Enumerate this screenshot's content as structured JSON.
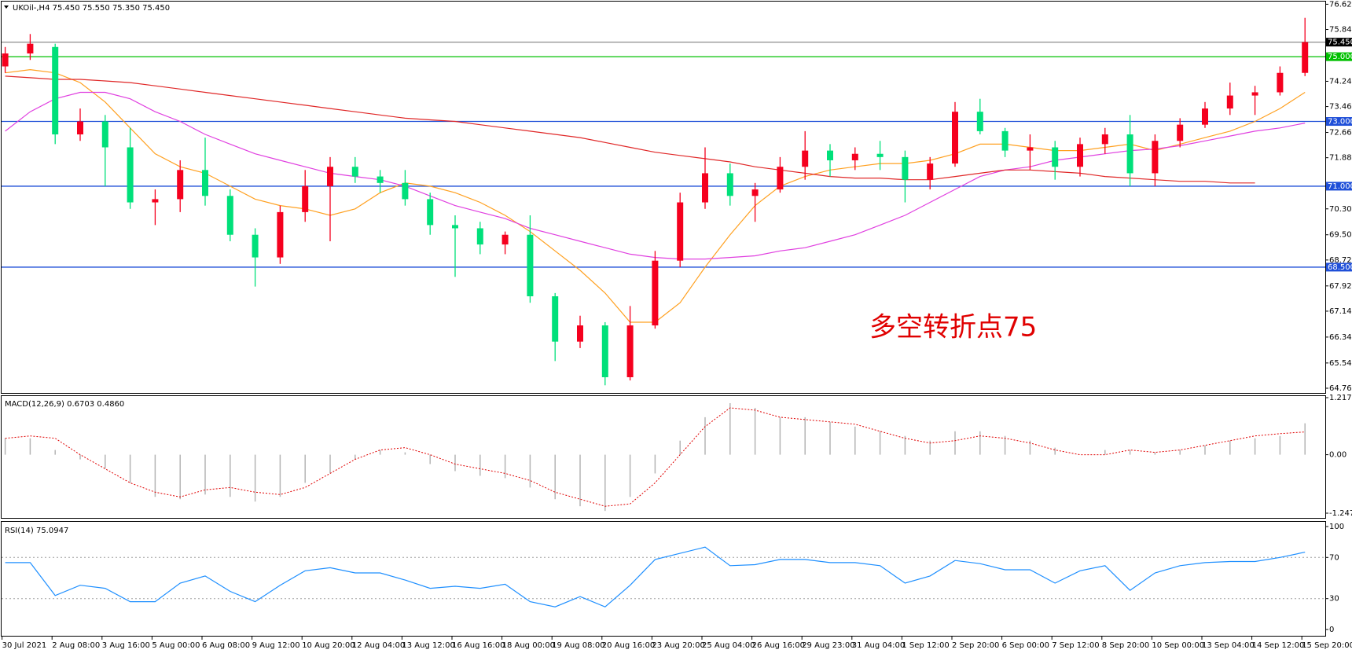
{
  "chart_data": [
    {
      "type": "candlestick",
      "title": "UKOil-,H4  75.450 75.550 75.350 75.450",
      "annotation": "多空转折点75",
      "categories": [
        "30 Jul 2021",
        null,
        "2 Aug 08:00",
        null,
        "3 Aug 16:00",
        null,
        "5 Aug 00:00",
        null,
        "6 Aug 08:00",
        null,
        "9 Aug 12:00",
        null,
        "10 Aug 20:00",
        null,
        "12 Aug 04:00",
        null,
        "13 Aug 12:00",
        null,
        "16 Aug 16:00",
        null,
        "18 Aug 00:00",
        null,
        "19 Aug 08:00",
        null,
        "20 Aug 16:00",
        null,
        "23 Aug 20:00",
        null,
        "25 Aug 04:00",
        null,
        "26 Aug 16:00",
        null,
        "29 Aug 23:00",
        null,
        "31 Aug 04:00",
        null,
        "1 Sep 12:00",
        null,
        "2 Sep 20:00",
        null,
        "6 Sep 00:00",
        null,
        "7 Sep 12:00",
        null,
        "8 Sep 20:00",
        null,
        "10 Sep 00:00",
        null,
        "13 Sep 04:00",
        null,
        "14 Sep 12:00",
        null,
        "15 Sep 20:00"
      ],
      "open": [
        74.7,
        75.1,
        75.3,
        72.6,
        73.0,
        72.2,
        70.5,
        70.6,
        71.5,
        70.7,
        69.5,
        68.8,
        70.2,
        71.0,
        71.6,
        71.3,
        71.1,
        70.6,
        69.8,
        69.7,
        69.2,
        69.5,
        67.6,
        66.2,
        66.7,
        65.1,
        66.7,
        68.7,
        70.5,
        71.4,
        70.7,
        70.9,
        71.6,
        72.1,
        71.8,
        72.0,
        71.9,
        71.2,
        71.7,
        73.3,
        72.7,
        72.1,
        72.2,
        71.6,
        72.3,
        72.6,
        71.4,
        72.4,
        72.9,
        73.4,
        73.8,
        73.9,
        74.5
      ],
      "high": [
        75.3,
        75.7,
        75.4,
        73.4,
        73.2,
        72.8,
        70.9,
        71.8,
        72.5,
        70.9,
        69.7,
        70.4,
        71.5,
        71.9,
        71.9,
        71.5,
        71.5,
        70.8,
        70.1,
        69.9,
        69.6,
        70.1,
        67.7,
        67.0,
        66.8,
        67.3,
        69.0,
        70.8,
        72.2,
        71.7,
        71.1,
        71.9,
        72.7,
        72.3,
        72.2,
        72.4,
        72.1,
        71.9,
        73.6,
        73.7,
        72.8,
        72.6,
        72.4,
        72.5,
        72.8,
        73.2,
        72.6,
        73.1,
        73.6,
        74.2,
        74.1,
        74.7,
        76.2
      ],
      "low": [
        74.5,
        74.9,
        72.3,
        72.4,
        71.0,
        70.3,
        69.8,
        70.2,
        70.4,
        69.3,
        67.9,
        68.6,
        69.9,
        69.3,
        71.1,
        70.8,
        70.4,
        69.5,
        68.2,
        68.9,
        68.9,
        67.4,
        65.6,
        66.0,
        64.85,
        65.0,
        66.6,
        68.5,
        70.3,
        70.4,
        69.9,
        70.8,
        71.2,
        71.3,
        71.5,
        71.5,
        70.5,
        70.9,
        71.6,
        72.6,
        71.9,
        71.5,
        71.2,
        71.3,
        72.0,
        71.0,
        71.0,
        72.2,
        72.8,
        73.2,
        73.2,
        73.8,
        74.4
      ],
      "close": [
        75.1,
        75.4,
        72.6,
        73.0,
        72.2,
        70.5,
        70.6,
        71.5,
        70.7,
        69.5,
        68.8,
        70.2,
        71.0,
        71.6,
        71.3,
        71.1,
        70.6,
        69.8,
        69.7,
        69.2,
        69.5,
        67.6,
        66.2,
        66.7,
        65.1,
        66.7,
        68.7,
        70.5,
        71.4,
        70.7,
        70.9,
        71.6,
        72.1,
        71.8,
        72.0,
        71.9,
        71.2,
        71.7,
        73.3,
        72.7,
        72.1,
        72.2,
        71.6,
        72.3,
        72.6,
        71.4,
        72.4,
        72.9,
        73.4,
        73.8,
        73.9,
        74.5,
        75.45
      ],
      "up_color": "#f5001e",
      "down_color": "#00e07a",
      "lines": [
        {
          "color": "#ffa020",
          "values": [
            74.5,
            74.6,
            74.5,
            74.2,
            73.6,
            72.8,
            72.0,
            71.6,
            71.4,
            71.0,
            70.6,
            70.4,
            70.3,
            70.1,
            70.3,
            70.8,
            71.1,
            71.0,
            70.8,
            70.5,
            70.1,
            69.6,
            69.0,
            68.4,
            67.7,
            66.8,
            66.8,
            67.4,
            68.5,
            69.5,
            70.4,
            71.0,
            71.3,
            71.5,
            71.6,
            71.7,
            71.7,
            71.8,
            72.0,
            72.3,
            72.3,
            72.2,
            72.1,
            72.1,
            72.2,
            72.3,
            72.1,
            72.3,
            72.5,
            72.7,
            73.0,
            73.4,
            73.9
          ]
        },
        {
          "color": "#e040e0",
          "values": [
            72.7,
            73.3,
            73.7,
            73.9,
            73.9,
            73.7,
            73.3,
            73.0,
            72.6,
            72.3,
            72.0,
            71.8,
            71.6,
            71.4,
            71.3,
            71.2,
            71.0,
            70.7,
            70.4,
            70.2,
            70.0,
            69.7,
            69.5,
            69.3,
            69.1,
            68.9,
            68.8,
            68.75,
            68.75,
            68.8,
            68.85,
            69.0,
            69.1,
            69.3,
            69.5,
            69.8,
            70.1,
            70.5,
            70.9,
            71.3,
            71.5,
            71.6,
            71.8,
            71.9,
            72.0,
            72.1,
            72.15,
            72.25,
            72.4,
            72.55,
            72.7,
            72.8,
            72.95
          ]
        },
        {
          "color": "#e02828",
          "values": [
            74.4,
            74.35,
            74.3,
            74.3,
            74.25,
            74.2,
            74.1,
            74.0,
            73.9,
            73.8,
            73.7,
            73.6,
            73.5,
            73.4,
            73.3,
            73.2,
            73.1,
            73.05,
            73.0,
            72.9,
            72.8,
            72.7,
            72.6,
            72.5,
            72.35,
            72.2,
            72.05,
            71.95,
            71.85,
            71.75,
            71.6,
            71.5,
            71.4,
            71.3,
            71.25,
            71.25,
            71.2,
            71.2,
            71.3,
            71.4,
            71.5,
            71.5,
            71.45,
            71.4,
            71.3,
            71.25,
            71.2,
            71.15,
            71.15,
            71.1,
            71.1,
            null,
            null
          ]
        }
      ],
      "levels": [
        {
          "value": 75.45,
          "label": "75.450",
          "color": "#8c8c8c",
          "label_color": "#000000",
          "text_color": "#ffffff"
        },
        {
          "value": 75,
          "label": "75.000",
          "color": "#00c000",
          "label_color": "#00c000",
          "text_color": "#ffffff"
        },
        {
          "value": 73,
          "label": "73.000",
          "color": "#1f4fd8",
          "label_color": "#1f4fd8",
          "text_color": "#ffffff"
        },
        {
          "value": 71,
          "label": "71.000",
          "color": "#1f4fd8",
          "label_color": "#1f4fd8",
          "text_color": "#ffffff"
        },
        {
          "value": 68.5,
          "label": "68.500",
          "color": "#1f4fd8",
          "label_color": "#1f4fd8",
          "text_color": "#ffffff"
        }
      ],
      "ylim": [
        64.76,
        76.62
      ],
      "yticks": [
        {
          "value": 76.62,
          "label": "76.620"
        },
        75.84,
        {
          "value": 74.24,
          "label": "74.240"
        },
        73.46,
        72.66,
        71.88,
        {
          "value": 70.3,
          "label": "70.300"
        },
        {
          "value": 69.5,
          "label": "69.500"
        },
        68.72,
        67.92,
        67.14,
        66.34,
        65.54,
        {
          "value": 64.76,
          "label": "64.760"
        }
      ]
    },
    {
      "type": "macd",
      "title": "MACD(12,26,9) 0.6703 0.4860",
      "series": [
        {
          "style": "bar",
          "color": "#b4b4b4",
          "values": [
            0.35,
            0.35,
            0.1,
            -0.1,
            -0.3,
            -0.6,
            -0.9,
            -0.95,
            -0.85,
            -0.9,
            -1.0,
            -0.9,
            -0.6,
            -0.4,
            -0.1,
            0.1,
            0.05,
            -0.2,
            -0.35,
            -0.45,
            -0.5,
            -0.7,
            -0.95,
            -1.1,
            -1.2,
            -0.9,
            -0.4,
            0.3,
            0.8,
            1.1,
            1.0,
            0.8,
            0.8,
            0.7,
            0.6,
            0.5,
            0.4,
            0.3,
            0.5,
            0.5,
            0.4,
            0.3,
            0.15,
            0.0,
            0.1,
            0.1,
            0.05,
            0.1,
            0.2,
            0.3,
            0.35,
            0.4,
            0.6703
          ]
        },
        {
          "style": "dotted",
          "color": "#e00000",
          "values": [
            0.35,
            0.4,
            0.35,
            0.0,
            -0.3,
            -0.6,
            -0.8,
            -0.9,
            -0.75,
            -0.7,
            -0.8,
            -0.85,
            -0.7,
            -0.4,
            -0.1,
            0.1,
            0.15,
            0.0,
            -0.2,
            -0.3,
            -0.4,
            -0.55,
            -0.8,
            -0.95,
            -1.1,
            -1.05,
            -0.6,
            0.0,
            0.6,
            1.0,
            0.95,
            0.8,
            0.75,
            0.7,
            0.65,
            0.5,
            0.35,
            0.25,
            0.3,
            0.4,
            0.35,
            0.25,
            0.1,
            0.0,
            0.0,
            0.1,
            0.05,
            0.1,
            0.2,
            0.3,
            0.4,
            0.45,
            0.486
          ]
        }
      ],
      "ylim": [
        -1.2479,
        1.2172
      ],
      "yticks": [
        1.2172,
        {
          "value": 0,
          "label": "0.00"
        },
        -1.2479
      ]
    },
    {
      "type": "line",
      "title": "RSI(14) 75.0947",
      "series": [
        {
          "style": "solid",
          "color": "#1e8fff",
          "values": [
            65,
            65,
            33,
            43,
            40,
            27,
            27,
            45,
            52,
            37,
            27,
            43,
            57,
            60,
            55,
            55,
            48,
            40,
            42,
            40,
            44,
            27,
            22,
            32,
            22,
            43,
            68,
            74,
            80,
            62,
            63,
            68,
            68,
            65,
            65,
            62,
            45,
            52,
            67,
            64,
            58,
            58,
            45,
            57,
            62,
            38,
            55,
            62,
            65,
            66,
            66,
            70,
            75.0947
          ]
        }
      ],
      "ylim": [
        0,
        100
      ],
      "yticks": [
        100,
        70,
        30,
        0
      ],
      "grid": "inner"
    }
  ]
}
